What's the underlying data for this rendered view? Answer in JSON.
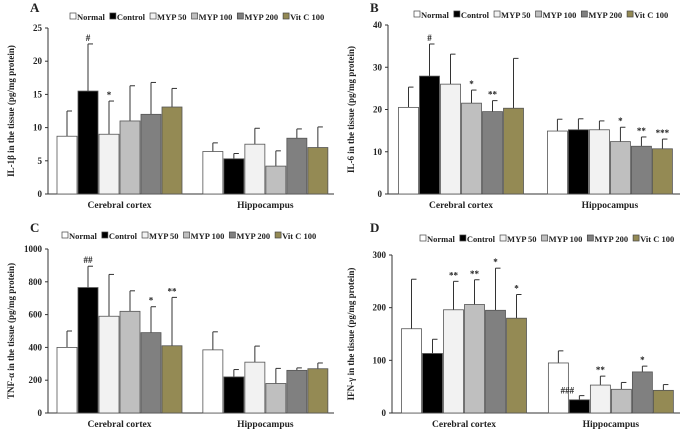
{
  "chart_data": [
    {
      "type": "bar",
      "panel_label": "A",
      "ylabel": "IL-1β in the tissue (pg/mg protein)",
      "categories": [
        "Cerebral cortex",
        "Hippocampus"
      ],
      "ylim": [
        0,
        25
      ],
      "yticks": [
        0,
        5,
        10,
        15,
        20,
        25
      ],
      "legend_position": "top",
      "series": [
        {
          "name": "Normal",
          "color": "#ffffff",
          "values": [
            8.7,
            6.4
          ],
          "error_top": [
            12.5,
            7.7
          ],
          "annotations": [
            "",
            ""
          ]
        },
        {
          "name": "Control",
          "color": "#000000",
          "values": [
            15.5,
            5.3
          ],
          "error_top": [
            22.6,
            6.1
          ],
          "annotations": [
            "#",
            ""
          ]
        },
        {
          "name": "MYP 50",
          "color": "#f2f2f2",
          "values": [
            9.0,
            7.5
          ],
          "error_top": [
            14.0,
            9.9
          ],
          "annotations": [
            "*",
            ""
          ]
        },
        {
          "name": "MYP 100",
          "color": "#bfbfbf",
          "values": [
            11.0,
            4.2
          ],
          "error_top": [
            16.3,
            6.5
          ],
          "annotations": [
            "",
            ""
          ]
        },
        {
          "name": "MYP 200",
          "color": "#808080",
          "values": [
            12.0,
            8.4
          ],
          "error_top": [
            16.8,
            9.8
          ],
          "annotations": [
            "",
            ""
          ]
        },
        {
          "name": "Vit C 100",
          "color": "#948a54",
          "values": [
            13.1,
            7.0
          ],
          "error_top": [
            15.9,
            10.1
          ],
          "annotations": [
            "",
            ""
          ]
        }
      ]
    },
    {
      "type": "bar",
      "panel_label": "B",
      "ylabel": "IL-6 in the tissue (pg/mg protein)",
      "categories": [
        "Cerebral cortex",
        "Hippocampus"
      ],
      "ylim": [
        0,
        40
      ],
      "yticks": [
        0,
        10,
        20,
        30,
        40
      ],
      "legend_position": "top",
      "series": [
        {
          "name": "Normal",
          "color": "#ffffff",
          "values": [
            20.5,
            14.9
          ],
          "error_top": [
            25.3,
            17.7
          ],
          "annotations": [
            "",
            ""
          ]
        },
        {
          "name": "Control",
          "color": "#000000",
          "values": [
            27.9,
            15.2
          ],
          "error_top": [
            35.5,
            17.8
          ],
          "annotations": [
            "#",
            ""
          ]
        },
        {
          "name": "MYP 50",
          "color": "#f2f2f2",
          "values": [
            26.0,
            15.2
          ],
          "error_top": [
            33.1,
            17.3
          ],
          "annotations": [
            "",
            ""
          ]
        },
        {
          "name": "MYP 100",
          "color": "#bfbfbf",
          "values": [
            21.5,
            12.4
          ],
          "error_top": [
            24.6,
            15.8
          ],
          "annotations": [
            "*",
            "*"
          ]
        },
        {
          "name": "MYP 200",
          "color": "#808080",
          "values": [
            19.5,
            11.3
          ],
          "error_top": [
            22.1,
            13.5
          ],
          "annotations": [
            "**",
            "**"
          ]
        },
        {
          "name": "Vit C 100",
          "color": "#948a54",
          "values": [
            20.3,
            10.7
          ],
          "error_top": [
            32.1,
            13.0
          ],
          "annotations": [
            "",
            "***"
          ]
        }
      ]
    },
    {
      "type": "bar",
      "panel_label": "C",
      "ylabel": "TNF-α in the tissue (pg/mg protein)",
      "categories": [
        "Cerebral cortex",
        "Hippocampus"
      ],
      "ylim": [
        0,
        1000
      ],
      "yticks": [
        0,
        200,
        400,
        600,
        800,
        1000
      ],
      "legend_position": "top",
      "series": [
        {
          "name": "Normal",
          "color": "#ffffff",
          "values": [
            400,
            385
          ],
          "error_top": [
            500,
            495
          ],
          "annotations": [
            "",
            ""
          ]
        },
        {
          "name": "Control",
          "color": "#000000",
          "values": [
            765,
            220
          ],
          "error_top": [
            895,
            265
          ],
          "annotations": [
            "##",
            ""
          ]
        },
        {
          "name": "MYP 50",
          "color": "#f2f2f2",
          "values": [
            590,
            310
          ],
          "error_top": [
            845,
            408
          ],
          "annotations": [
            "",
            ""
          ]
        },
        {
          "name": "MYP 100",
          "color": "#bfbfbf",
          "values": [
            620,
            180
          ],
          "error_top": [
            745,
            272
          ],
          "annotations": [
            "",
            ""
          ]
        },
        {
          "name": "MYP 200",
          "color": "#808080",
          "values": [
            490,
            260
          ],
          "error_top": [
            648,
            275
          ],
          "annotations": [
            "*",
            ""
          ]
        },
        {
          "name": "Vit C 100",
          "color": "#948a54",
          "values": [
            410,
            270
          ],
          "error_top": [
            705,
            305
          ],
          "annotations": [
            "**",
            ""
          ]
        }
      ]
    },
    {
      "type": "bar",
      "panel_label": "D",
      "ylabel": "IFN-γ in the tissue (pg/mg protein)",
      "categories": [
        "Cerebral cortex",
        "Hippocampus"
      ],
      "ylim": [
        0,
        300
      ],
      "yticks": [
        0,
        100,
        200,
        300
      ],
      "legend_position": "top",
      "series": [
        {
          "name": "Normal",
          "color": "#ffffff",
          "values": [
            160,
            95
          ],
          "error_top": [
            254,
            118
          ],
          "annotations": [
            "",
            ""
          ]
        },
        {
          "name": "Control",
          "color": "#000000",
          "values": [
            113,
            25
          ],
          "error_top": [
            140,
            33
          ],
          "annotations": [
            "",
            "###"
          ]
        },
        {
          "name": "MYP 50",
          "color": "#f2f2f2",
          "values": [
            196,
            53
          ],
          "error_top": [
            250,
            70
          ],
          "annotations": [
            "**",
            "**"
          ]
        },
        {
          "name": "MYP 100",
          "color": "#bfbfbf",
          "values": [
            206,
            45
          ],
          "error_top": [
            253,
            58
          ],
          "annotations": [
            "**",
            ""
          ]
        },
        {
          "name": "MYP 200",
          "color": "#808080",
          "values": [
            195,
            78
          ],
          "error_top": [
            275,
            89
          ],
          "annotations": [
            "*",
            "*"
          ]
        },
        {
          "name": "Vit C 100",
          "color": "#948a54",
          "values": [
            180,
            43
          ],
          "error_top": [
            225,
            54
          ],
          "annotations": [
            "*",
            ""
          ]
        }
      ]
    }
  ]
}
